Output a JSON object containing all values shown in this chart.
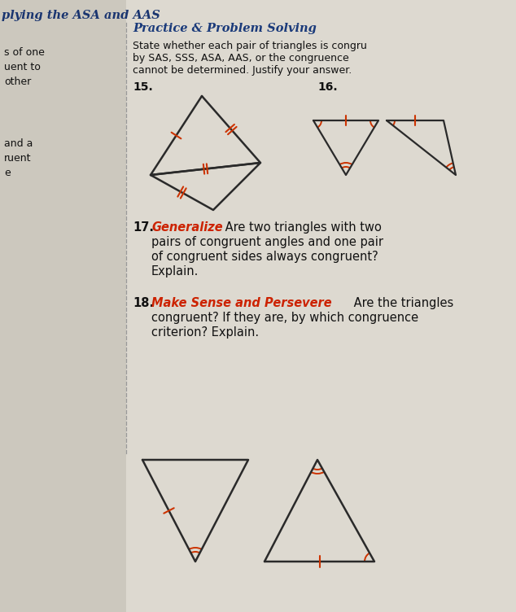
{
  "bg_color": "#ddd9d0",
  "title_color": "#1a3a7a",
  "highlight_color": "#cc2200",
  "text_color": "#111111",
  "line_color": "#2a2a2a",
  "mark_color": "#cc3300",
  "left_margin_texts": [
    "s of one",
    "uent to",
    "other",
    "",
    "and a",
    "ruent",
    "e"
  ],
  "header_text": "Practice & Problem Solving",
  "q17_bold": "Generalize",
  "q17_rest": " Are two triangles with two\npairs of congruent angles and one pair\nof congruent sides always congruent?\nExplain.",
  "q18_bold": "Make Sense and Persevere",
  "q18_rest": " Are the triangles\ncongruent? If they are, by which congruence\ncriterion? Explain."
}
